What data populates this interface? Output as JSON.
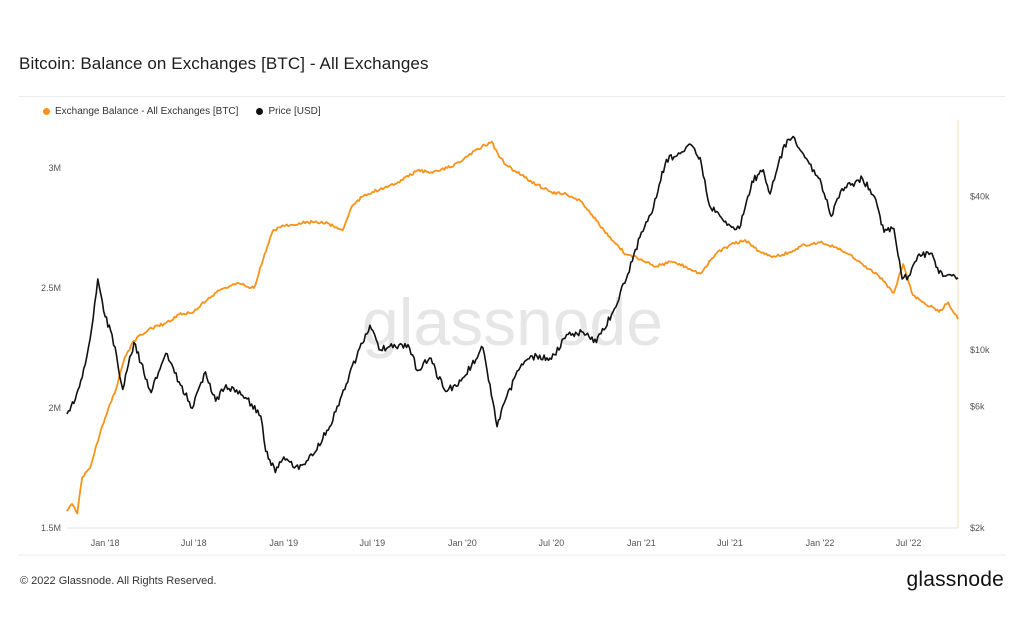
{
  "header": {
    "title": "Bitcoin: Balance on Exchanges [BTC] - All Exchanges"
  },
  "legend": [
    {
      "label": "Exchange Balance - All Exchanges [BTC]",
      "color": "#f7931a"
    },
    {
      "label": "Price [USD]",
      "color": "#111111"
    }
  ],
  "watermark": "glassnode",
  "footer": {
    "copyright": "© 2022 Glassnode. All Rights Reserved.",
    "logo": "glassnode"
  },
  "chart_data": {
    "type": "line",
    "title": "Bitcoin: Balance on Exchanges [BTC] - All Exchanges",
    "x_range": [
      "2017-10-15",
      "2022-10-10"
    ],
    "x_ticks": [
      {
        "date": "2018-01-01",
        "label": "Jan '18"
      },
      {
        "date": "2018-07-01",
        "label": "Jul '18"
      },
      {
        "date": "2019-01-01",
        "label": "Jan '19"
      },
      {
        "date": "2019-07-01",
        "label": "Jul '19"
      },
      {
        "date": "2020-01-01",
        "label": "Jan '20"
      },
      {
        "date": "2020-07-01",
        "label": "Jul '20"
      },
      {
        "date": "2021-01-01",
        "label": "Jan '21"
      },
      {
        "date": "2021-07-01",
        "label": "Jul '21"
      },
      {
        "date": "2022-01-01",
        "label": "Jan '22"
      },
      {
        "date": "2022-07-01",
        "label": "Jul '22"
      }
    ],
    "y_left": {
      "scale": "linear",
      "range": [
        1500000,
        3200000
      ],
      "ticks": [
        {
          "value": 1500000,
          "label": "1.5M"
        },
        {
          "value": 2000000,
          "label": "2M"
        },
        {
          "value": 2500000,
          "label": "2.5M"
        },
        {
          "value": 3000000,
          "label": "3M"
        }
      ]
    },
    "y_right": {
      "scale": "log",
      "range": [
        2000,
        80000
      ],
      "ticks": [
        {
          "value": 2000,
          "label": "$2k"
        },
        {
          "value": 6000,
          "label": "$6k"
        },
        {
          "value": 10000,
          "label": "$10k"
        },
        {
          "value": 40000,
          "label": "$40k"
        }
      ]
    },
    "series": [
      {
        "name": "Exchange Balance - All Exchanges [BTC]",
        "axis": "left",
        "color": "#f7931a",
        "points": [
          [
            "2017-10-15",
            1570000
          ],
          [
            "2017-10-25",
            1600000
          ],
          [
            "2017-11-05",
            1560000
          ],
          [
            "2017-11-15",
            1710000
          ],
          [
            "2017-12-01",
            1750000
          ],
          [
            "2017-12-15",
            1850000
          ],
          [
            "2018-01-01",
            1960000
          ],
          [
            "2018-01-20",
            2060000
          ],
          [
            "2018-02-10",
            2210000
          ],
          [
            "2018-03-01",
            2280000
          ],
          [
            "2018-04-01",
            2330000
          ],
          [
            "2018-05-01",
            2350000
          ],
          [
            "2018-06-01",
            2390000
          ],
          [
            "2018-07-01",
            2400000
          ],
          [
            "2018-08-01",
            2460000
          ],
          [
            "2018-09-01",
            2500000
          ],
          [
            "2018-10-01",
            2520000
          ],
          [
            "2018-11-01",
            2500000
          ],
          [
            "2018-11-20",
            2620000
          ],
          [
            "2018-12-10",
            2740000
          ],
          [
            "2019-01-01",
            2760000
          ],
          [
            "2019-02-01",
            2770000
          ],
          [
            "2019-03-01",
            2775000
          ],
          [
            "2019-04-01",
            2770000
          ],
          [
            "2019-05-01",
            2740000
          ],
          [
            "2019-05-20",
            2840000
          ],
          [
            "2019-06-10",
            2880000
          ],
          [
            "2019-07-01",
            2900000
          ],
          [
            "2019-08-01",
            2920000
          ],
          [
            "2019-09-01",
            2950000
          ],
          [
            "2019-10-01",
            2990000
          ],
          [
            "2019-11-01",
            2980000
          ],
          [
            "2019-12-01",
            3000000
          ],
          [
            "2020-01-01",
            3030000
          ],
          [
            "2020-02-01",
            3080000
          ],
          [
            "2020-03-01",
            3110000
          ],
          [
            "2020-03-15",
            3050000
          ],
          [
            "2020-04-01",
            3010000
          ],
          [
            "2020-05-01",
            2970000
          ],
          [
            "2020-06-01",
            2930000
          ],
          [
            "2020-07-01",
            2900000
          ],
          [
            "2020-08-01",
            2890000
          ],
          [
            "2020-09-01",
            2860000
          ],
          [
            "2020-10-01",
            2780000
          ],
          [
            "2020-11-01",
            2700000
          ],
          [
            "2020-12-01",
            2640000
          ],
          [
            "2021-01-01",
            2620000
          ],
          [
            "2021-02-01",
            2590000
          ],
          [
            "2021-03-01",
            2610000
          ],
          [
            "2021-04-01",
            2590000
          ],
          [
            "2021-05-01",
            2560000
          ],
          [
            "2021-06-01",
            2640000
          ],
          [
            "2021-07-01",
            2680000
          ],
          [
            "2021-08-01",
            2700000
          ],
          [
            "2021-09-01",
            2650000
          ],
          [
            "2021-10-01",
            2630000
          ],
          [
            "2021-11-01",
            2650000
          ],
          [
            "2021-12-01",
            2680000
          ],
          [
            "2022-01-01",
            2690000
          ],
          [
            "2022-02-01",
            2670000
          ],
          [
            "2022-03-01",
            2640000
          ],
          [
            "2022-04-01",
            2590000
          ],
          [
            "2022-05-01",
            2550000
          ],
          [
            "2022-06-01",
            2480000
          ],
          [
            "2022-06-20",
            2600000
          ],
          [
            "2022-07-10",
            2470000
          ],
          [
            "2022-08-01",
            2440000
          ],
          [
            "2022-09-01",
            2400000
          ],
          [
            "2022-09-20",
            2440000
          ],
          [
            "2022-10-10",
            2370000
          ]
        ]
      },
      {
        "name": "Price [USD]",
        "axis": "right",
        "color": "#111111",
        "points": [
          [
            "2017-10-15",
            5600
          ],
          [
            "2017-11-01",
            6400
          ],
          [
            "2017-11-15",
            7800
          ],
          [
            "2017-12-01",
            11000
          ],
          [
            "2017-12-17",
            19000
          ],
          [
            "2018-01-01",
            13500
          ],
          [
            "2018-01-15",
            11500
          ],
          [
            "2018-02-06",
            7000
          ],
          [
            "2018-03-01",
            10700
          ],
          [
            "2018-04-05",
            6800
          ],
          [
            "2018-05-05",
            9700
          ],
          [
            "2018-06-01",
            7500
          ],
          [
            "2018-06-28",
            5900
          ],
          [
            "2018-07-25",
            8200
          ],
          [
            "2018-08-15",
            6300
          ],
          [
            "2018-09-05",
            7300
          ],
          [
            "2018-10-15",
            6500
          ],
          [
            "2018-11-15",
            5500
          ],
          [
            "2018-11-25",
            4000
          ],
          [
            "2018-12-15",
            3300
          ],
          [
            "2019-01-01",
            3800
          ],
          [
            "2019-02-01",
            3400
          ],
          [
            "2019-03-01",
            3850
          ],
          [
            "2019-04-05",
            5000
          ],
          [
            "2019-05-15",
            8000
          ],
          [
            "2019-06-26",
            12500
          ],
          [
            "2019-07-15",
            10000
          ],
          [
            "2019-08-15",
            10500
          ],
          [
            "2019-09-15",
            10200
          ],
          [
            "2019-10-01",
            8300
          ],
          [
            "2019-10-26",
            9300
          ],
          [
            "2019-11-25",
            7000
          ],
          [
            "2019-12-20",
            7200
          ],
          [
            "2020-01-20",
            8700
          ],
          [
            "2020-02-12",
            10200
          ],
          [
            "2020-03-12",
            5000
          ],
          [
            "2020-04-01",
            6600
          ],
          [
            "2020-05-01",
            8800
          ],
          [
            "2020-06-01",
            9500
          ],
          [
            "2020-07-01",
            9200
          ],
          [
            "2020-08-01",
            11500
          ],
          [
            "2020-09-01",
            11800
          ],
          [
            "2020-10-01",
            10700
          ],
          [
            "2020-11-01",
            13800
          ],
          [
            "2020-12-01",
            19000
          ],
          [
            "2021-01-01",
            29000
          ],
          [
            "2021-01-20",
            34000
          ],
          [
            "2021-02-21",
            56000
          ],
          [
            "2021-03-15",
            58000
          ],
          [
            "2021-04-14",
            63500
          ],
          [
            "2021-05-01",
            57000
          ],
          [
            "2021-05-20",
            37000
          ],
          [
            "2021-06-22",
            32000
          ],
          [
            "2021-07-20",
            30000
          ],
          [
            "2021-08-15",
            46000
          ],
          [
            "2021-09-07",
            51000
          ],
          [
            "2021-09-21",
            41000
          ],
          [
            "2021-10-20",
            64000
          ],
          [
            "2021-11-10",
            68000
          ],
          [
            "2021-12-01",
            57000
          ],
          [
            "2022-01-01",
            47000
          ],
          [
            "2022-01-24",
            33500
          ],
          [
            "2022-02-15",
            43000
          ],
          [
            "2022-03-29",
            47000
          ],
          [
            "2022-04-25",
            39000
          ],
          [
            "2022-05-12",
            29000
          ],
          [
            "2022-06-01",
            30000
          ],
          [
            "2022-06-18",
            19000
          ],
          [
            "2022-07-01",
            19500
          ],
          [
            "2022-07-20",
            23500
          ],
          [
            "2022-08-15",
            24000
          ],
          [
            "2022-09-01",
            20000
          ],
          [
            "2022-09-15",
            19500
          ],
          [
            "2022-10-10",
            19200
          ]
        ]
      }
    ]
  }
}
